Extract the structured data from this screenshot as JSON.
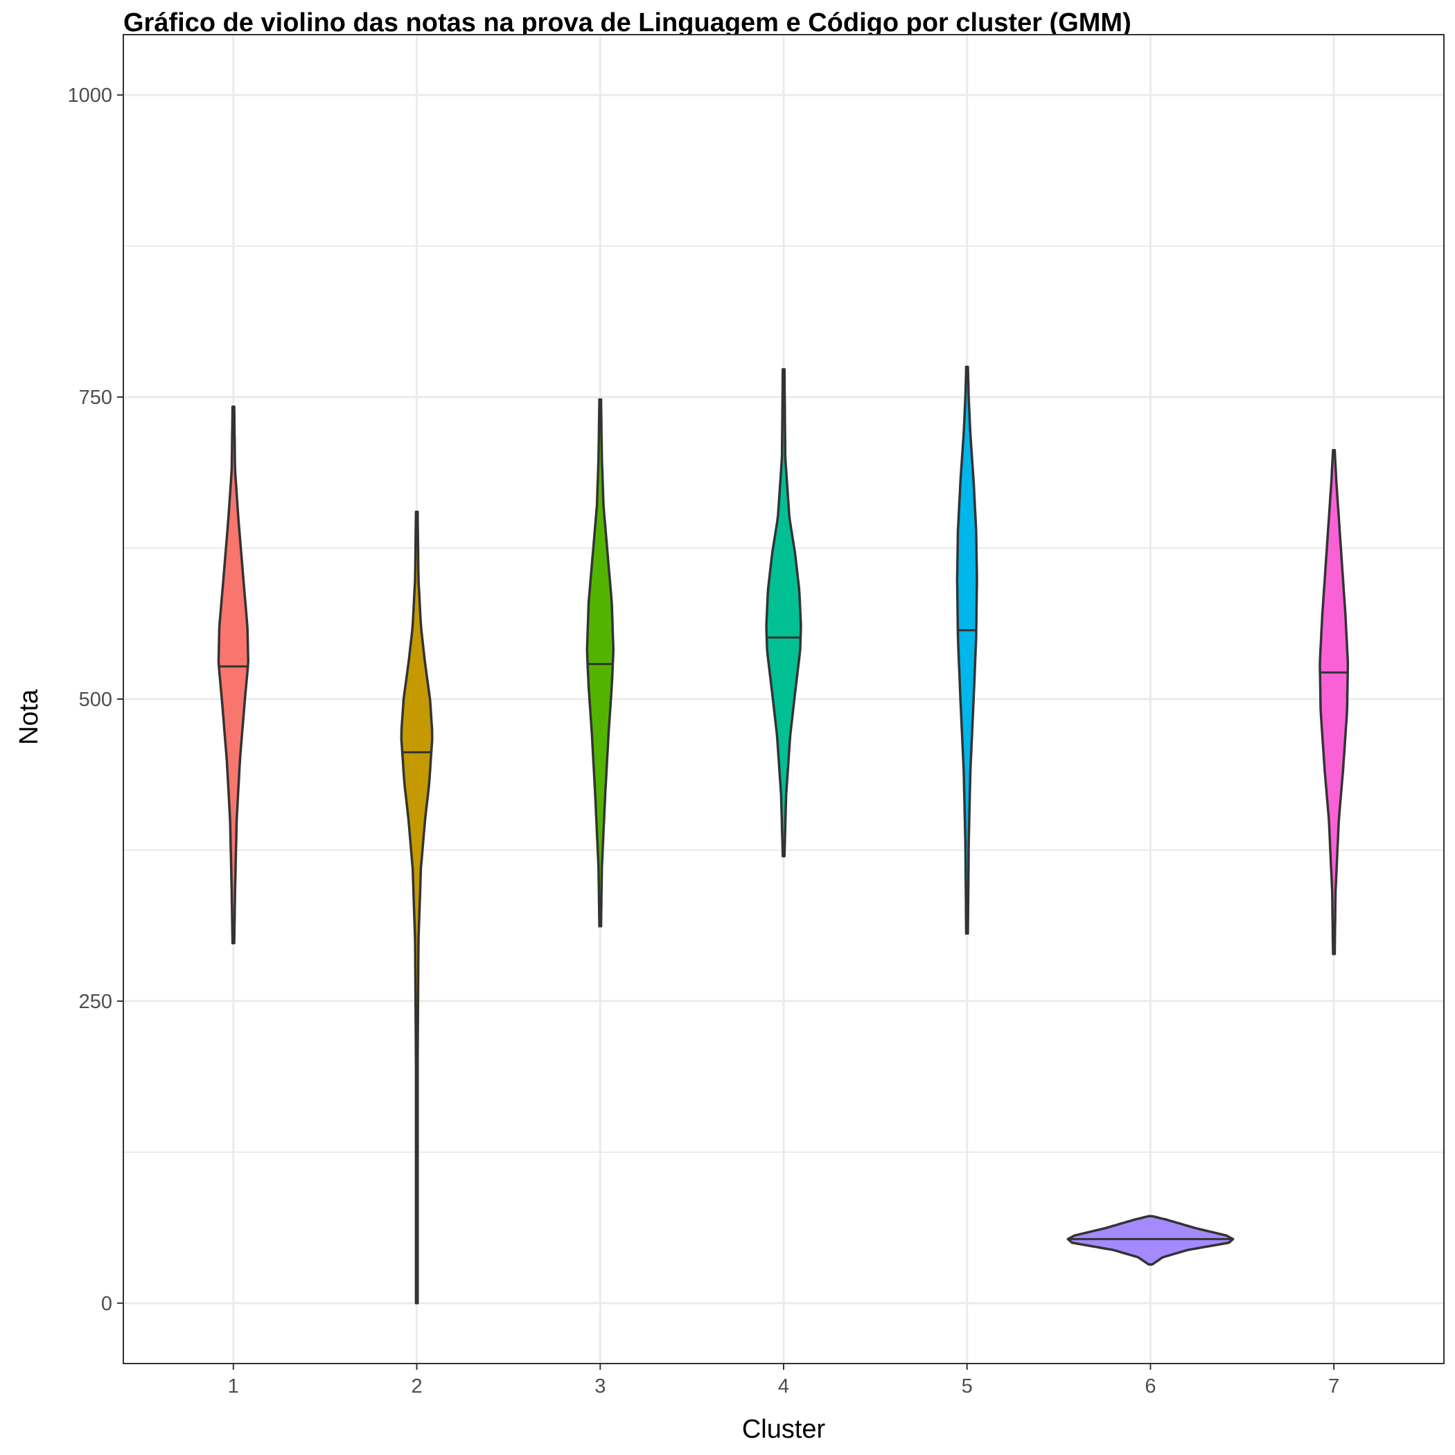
{
  "chart_data": {
    "type": "violin",
    "title": "Gráfico de violino das notas na prova de Linguagem e Código por cluster (GMM)",
    "xlabel": "Cluster",
    "ylabel": "Nota",
    "categories": [
      "1",
      "2",
      "3",
      "4",
      "5",
      "6",
      "7"
    ],
    "ylim": [
      -50,
      1050
    ],
    "yticks": [
      0,
      250,
      500,
      750,
      1000
    ],
    "ytick_labels": [
      "0",
      "250",
      "500",
      "750",
      "1000"
    ],
    "grid": true,
    "legend": "none",
    "series": [
      {
        "category": "1",
        "color": "#F8766D",
        "min": 298,
        "max": 742,
        "median": 527,
        "density": [
          [
            298,
            0.01
          ],
          [
            340,
            0.02
          ],
          [
            400,
            0.04
          ],
          [
            450,
            0.08
          ],
          [
            500,
            0.14
          ],
          [
            530,
            0.18
          ],
          [
            560,
            0.17
          ],
          [
            600,
            0.12
          ],
          [
            650,
            0.06
          ],
          [
            690,
            0.02
          ],
          [
            742,
            0.01
          ]
        ]
      },
      {
        "category": "2",
        "color": "#C49A00",
        "min": 0,
        "max": 655,
        "median": 456,
        "density": [
          [
            0,
            0.01
          ],
          [
            200,
            0.01
          ],
          [
            300,
            0.02
          ],
          [
            360,
            0.05
          ],
          [
            400,
            0.1
          ],
          [
            430,
            0.15
          ],
          [
            470,
            0.19
          ],
          [
            500,
            0.16
          ],
          [
            530,
            0.1
          ],
          [
            560,
            0.05
          ],
          [
            600,
            0.02
          ],
          [
            655,
            0.01
          ]
        ]
      },
      {
        "category": "3",
        "color": "#53B400",
        "min": 312,
        "max": 748,
        "median": 529,
        "density": [
          [
            312,
            0.01
          ],
          [
            360,
            0.02
          ],
          [
            420,
            0.06
          ],
          [
            470,
            0.1
          ],
          [
            510,
            0.14
          ],
          [
            540,
            0.16
          ],
          [
            580,
            0.14
          ],
          [
            620,
            0.09
          ],
          [
            660,
            0.04
          ],
          [
            700,
            0.02
          ],
          [
            748,
            0.01
          ]
        ]
      },
      {
        "category": "4",
        "color": "#00C094",
        "min": 370,
        "max": 773,
        "median": 551,
        "density": [
          [
            370,
            0.01
          ],
          [
            420,
            0.03
          ],
          [
            470,
            0.08
          ],
          [
            500,
            0.13
          ],
          [
            540,
            0.2
          ],
          [
            560,
            0.21
          ],
          [
            590,
            0.19
          ],
          [
            620,
            0.14
          ],
          [
            650,
            0.07
          ],
          [
            700,
            0.02
          ],
          [
            773,
            0.01
          ]
        ]
      },
      {
        "category": "5",
        "color": "#00B6EB",
        "min": 306,
        "max": 775,
        "median": 557,
        "density": [
          [
            306,
            0.01
          ],
          [
            380,
            0.02
          ],
          [
            440,
            0.04
          ],
          [
            500,
            0.08
          ],
          [
            550,
            0.11
          ],
          [
            600,
            0.12
          ],
          [
            640,
            0.11
          ],
          [
            680,
            0.08
          ],
          [
            720,
            0.04
          ],
          [
            750,
            0.02
          ],
          [
            775,
            0.01
          ]
        ]
      },
      {
        "category": "6",
        "color": "#A58AFF",
        "min": 32,
        "max": 72,
        "median": 53,
        "density": [
          [
            32,
            0.02
          ],
          [
            38,
            0.15
          ],
          [
            44,
            0.45
          ],
          [
            50,
            0.95
          ],
          [
            53,
            1.0
          ],
          [
            56,
            0.92
          ],
          [
            62,
            0.55
          ],
          [
            66,
            0.35
          ],
          [
            69,
            0.2
          ],
          [
            72,
            0.02
          ]
        ]
      },
      {
        "category": "7",
        "color": "#FB61D7",
        "min": 289,
        "max": 706,
        "median": 522,
        "density": [
          [
            289,
            0.01
          ],
          [
            340,
            0.02
          ],
          [
            400,
            0.06
          ],
          [
            440,
            0.11
          ],
          [
            490,
            0.16
          ],
          [
            530,
            0.17
          ],
          [
            570,
            0.14
          ],
          [
            610,
            0.1
          ],
          [
            650,
            0.06
          ],
          [
            680,
            0.03
          ],
          [
            706,
            0.01
          ]
        ]
      }
    ]
  }
}
